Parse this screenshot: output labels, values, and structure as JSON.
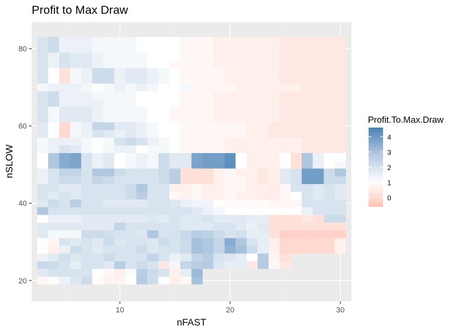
{
  "chart_data": {
    "type": "heatmap",
    "title": "Profit to Max Draw",
    "xlabel": "nFAST",
    "ylabel": "nSLOW",
    "xlim": [
      2,
      31
    ],
    "ylim": [
      14.6,
      86.9
    ],
    "x_ticks": [
      10,
      20,
      30
    ],
    "y_ticks": [
      20,
      40,
      60,
      80
    ],
    "grid": true,
    "legend_position": "right",
    "legend": {
      "title": "Profit.To.Max.Draw",
      "ticks": [
        4,
        3,
        2,
        1,
        0
      ],
      "range": [
        -0.6,
        4.6
      ]
    },
    "colors": {
      "low": "#ffc2b4",
      "mid": "#ffffff",
      "high": "#4a82b8",
      "midpoint": 1
    },
    "x_values": [
      3,
      4,
      5,
      6,
      7,
      8,
      9,
      10,
      11,
      12,
      13,
      14,
      15,
      16,
      17,
      18,
      19,
      20,
      21,
      22,
      23,
      24,
      25,
      26,
      27,
      28,
      29,
      30
    ],
    "y_values": [
      20,
      22,
      24,
      26,
      28,
      30,
      32,
      34,
      36,
      38,
      40,
      42,
      44,
      46,
      48,
      50,
      52,
      54,
      56,
      58,
      60,
      62,
      64,
      66,
      68,
      70,
      72,
      74,
      76,
      78,
      80,
      82
    ],
    "z_rows": [
      [
        0.8,
        0.9,
        1.4,
        1.7,
        2.0,
        0.9,
        0.7,
        0.7,
        1.0,
        2.5,
        2.0,
        1.0,
        0.6,
        0.8,
        2.8,
        null,
        null,
        null,
        null,
        null,
        null,
        null,
        null,
        null,
        null,
        null,
        null,
        null
      ],
      [
        1.6,
        1.8,
        1.8,
        1.8,
        1.8,
        1.0,
        0.8,
        0.6,
        1.1,
        2.4,
        2.0,
        1.8,
        0.6,
        1.5,
        3.0,
        null,
        null,
        null,
        null,
        null,
        null,
        null,
        null,
        null,
        null,
        null,
        null,
        null
      ],
      [
        2.1,
        2.0,
        1.8,
        1.5,
        1.8,
        1.8,
        1.6,
        2.4,
        1.8,
        2.0,
        1.8,
        0.4,
        1.2,
        2.2,
        2.4,
        2.5,
        1.7,
        1.5,
        1.5,
        0.4,
        2.5,
        0.8,
        0.4,
        null,
        null,
        null,
        null,
        null
      ],
      [
        1.4,
        1.6,
        1.9,
        1.7,
        1.8,
        1.8,
        2.0,
        1.8,
        1.8,
        1.8,
        2.2,
        1.8,
        1.4,
        1.6,
        2.2,
        2.4,
        1.8,
        1.7,
        1.5,
        1.0,
        2.5,
        0.7,
        0.2,
        null,
        null,
        null,
        null,
        null
      ],
      [
        1.0,
        0.6,
        1.4,
        2.0,
        1.8,
        1.6,
        1.8,
        1.8,
        1.8,
        2.0,
        1.7,
        1.8,
        1.8,
        2.0,
        2.8,
        2.6,
        2.2,
        3.2,
        2.8,
        2.0,
        1.5,
        0.6,
        0.0,
        0.0,
        0.0,
        0.0,
        0.0,
        0.6
      ],
      [
        1.0,
        0.7,
        1.8,
        1.6,
        1.8,
        1.6,
        2.0,
        1.7,
        1.8,
        1.8,
        1.7,
        2.0,
        1.8,
        2.0,
        2.8,
        2.6,
        2.2,
        3.4,
        2.6,
        1.8,
        1.5,
        0.6,
        0.0,
        0.0,
        0.0,
        0.0,
        0.0,
        0.6
      ],
      [
        1.6,
        1.2,
        1.2,
        1.2,
        2.0,
        2.0,
        1.9,
        1.8,
        1.8,
        1.7,
        2.6,
        1.8,
        1.8,
        2.1,
        2.4,
        2.3,
        2.0,
        1.8,
        1.9,
        1.5,
        1.5,
        0.2,
        -0.2,
        -0.2,
        -0.2,
        -0.2,
        -0.2,
        -0.2
      ],
      [
        1.6,
        1.6,
        1.6,
        1.6,
        1.6,
        1.6,
        1.6,
        2.2,
        1.8,
        1.8,
        1.8,
        1.8,
        1.8,
        1.6,
        1.6,
        1.6,
        1.8,
        1.8,
        1.6,
        1.4,
        1.6,
        0.2,
        0.2,
        0.2,
        0.2,
        0.2,
        0.2,
        0.2
      ],
      [
        1.0,
        1.4,
        1.4,
        1.4,
        1.6,
        1.6,
        1.6,
        1.6,
        1.6,
        1.6,
        1.7,
        1.6,
        1.8,
        1.6,
        1.7,
        1.8,
        1.6,
        1.6,
        1.6,
        1.5,
        1.5,
        0.2,
        0.2,
        0.2,
        0.4,
        0.2,
        2.0,
        2.0
      ],
      [
        2.6,
        1.8,
        1.8,
        1.8,
        1.8,
        1.8,
        1.8,
        1.8,
        1.8,
        1.8,
        1.8,
        1.8,
        1.8,
        1.8,
        1.6,
        1.4,
        1.2,
        1.0,
        1.0,
        1.0,
        1.0,
        1.0,
        1.0,
        1.0,
        1.4,
        1.8,
        1.8,
        1.8
      ],
      [
        1.6,
        2.0,
        1.8,
        2.4,
        1.8,
        1.8,
        1.6,
        1.6,
        1.6,
        1.6,
        1.8,
        1.8,
        1.7,
        1.4,
        1.3,
        1.3,
        1.0,
        0.9,
        0.9,
        0.9,
        0.9,
        0.8,
        0.8,
        0.8,
        1.8,
        1.8,
        1.8,
        1.8
      ],
      [
        1.8,
        1.6,
        1.8,
        1.6,
        1.8,
        1.8,
        1.8,
        1.8,
        2.0,
        2.4,
        1.8,
        1.8,
        0.8,
        0.6,
        0.8,
        0.6,
        0.6,
        0.8,
        0.6,
        0.6,
        0.5,
        0.5,
        0.8,
        1.0,
        1.8,
        1.6,
        1.8,
        1.6
      ],
      [
        1.8,
        1.8,
        1.6,
        1.6,
        1.8,
        1.8,
        1.8,
        1.8,
        2.0,
        2.6,
        1.8,
        1.8,
        0.6,
        0.6,
        0.8,
        0.6,
        0.6,
        0.8,
        0.8,
        0.6,
        0.6,
        0.5,
        0.8,
        1.8,
        1.8,
        1.6,
        1.8,
        1.6
      ],
      [
        1.4,
        1.8,
        2.0,
        2.0,
        1.8,
        2.2,
        2.0,
        1.8,
        1.8,
        1.8,
        1.8,
        2.0,
        2.4,
        0.2,
        0.2,
        0.2,
        0.6,
        0.8,
        0.8,
        0.6,
        0.4,
        0.6,
        1.6,
        1.8,
        3.8,
        3.8,
        2.0,
        2.0
      ],
      [
        1.4,
        1.8,
        2.2,
        2.2,
        1.8,
        2.6,
        2.6,
        2.0,
        1.8,
        1.8,
        1.8,
        2.0,
        2.4,
        0.2,
        0.2,
        0.2,
        0.6,
        0.8,
        0.6,
        0.6,
        0.4,
        0.6,
        1.6,
        1.8,
        3.8,
        3.8,
        2.0,
        2.6
      ],
      [
        1.0,
        2.6,
        3.4,
        3.6,
        1.8,
        1.4,
        1.6,
        1.0,
        1.2,
        1.4,
        1.2,
        2.0,
        1.6,
        1.6,
        3.6,
        3.8,
        3.8,
        4.2,
        1.0,
        0.6,
        0.6,
        0.6,
        1.0,
        0.2,
        2.6,
        1.4,
        1.0,
        1.2
      ],
      [
        1.0,
        2.6,
        3.4,
        3.6,
        1.8,
        1.4,
        1.6,
        1.0,
        1.2,
        1.4,
        1.2,
        2.0,
        1.6,
        1.6,
        3.6,
        3.8,
        3.8,
        4.2,
        1.0,
        0.6,
        0.6,
        0.6,
        1.0,
        0.2,
        2.6,
        1.4,
        1.0,
        1.0
      ],
      [
        1.2,
        1.4,
        1.8,
        1.6,
        1.2,
        1.0,
        1.2,
        1.4,
        1.4,
        1.0,
        1.2,
        1.2,
        1.0,
        0.8,
        0.8,
        0.8,
        0.8,
        0.6,
        0.6,
        0.6,
        0.6,
        0.6,
        0.6,
        0.6,
        0.4,
        0.4,
        0.4,
        0.4
      ],
      [
        1.2,
        1.4,
        1.4,
        1.4,
        1.2,
        1.0,
        1.2,
        1.8,
        2.0,
        1.8,
        1.4,
        1.2,
        1.0,
        0.8,
        0.8,
        0.8,
        0.8,
        0.6,
        0.6,
        0.6,
        0.6,
        0.6,
        0.6,
        0.6,
        0.4,
        0.4,
        0.4,
        0.4
      ],
      [
        1.6,
        1.0,
        0.0,
        1.2,
        1.4,
        1.8,
        1.6,
        1.4,
        1.6,
        1.4,
        1.2,
        1.0,
        1.0,
        0.8,
        0.8,
        0.8,
        0.8,
        0.8,
        0.8,
        0.6,
        0.6,
        0.4,
        0.4,
        0.4,
        0.4,
        0.4,
        0.4,
        0.4
      ],
      [
        1.6,
        1.0,
        0.0,
        1.2,
        1.4,
        2.2,
        2.2,
        1.6,
        1.6,
        1.4,
        1.2,
        1.0,
        1.0,
        0.8,
        0.8,
        0.8,
        0.8,
        0.8,
        0.8,
        0.6,
        0.6,
        0.4,
        0.4,
        0.4,
        0.4,
        0.4,
        0.4,
        0.4
      ],
      [
        1.8,
        1.2,
        1.6,
        1.6,
        1.6,
        1.4,
        1.2,
        1.2,
        1.2,
        1.2,
        1.0,
        1.0,
        0.8,
        0.8,
        0.8,
        0.8,
        0.6,
        0.6,
        0.6,
        0.6,
        0.6,
        0.6,
        0.4,
        0.4,
        0.4,
        0.4,
        0.4,
        0.4
      ],
      [
        1.8,
        1.2,
        1.6,
        1.6,
        1.6,
        1.4,
        1.2,
        1.2,
        1.2,
        1.2,
        1.0,
        1.0,
        0.8,
        0.8,
        0.8,
        0.8,
        0.6,
        0.6,
        0.6,
        0.6,
        0.6,
        0.6,
        0.4,
        0.4,
        0.4,
        0.4,
        0.4,
        0.4
      ],
      [
        1.8,
        2.0,
        1.4,
        1.4,
        1.4,
        1.4,
        1.2,
        1.2,
        1.2,
        1.0,
        1.0,
        1.0,
        1.0,
        0.8,
        0.8,
        0.8,
        0.6,
        0.6,
        0.6,
        0.6,
        0.6,
        0.6,
        0.4,
        0.4,
        0.4,
        0.4,
        0.4,
        0.4
      ],
      [
        1.8,
        2.0,
        1.4,
        1.4,
        1.4,
        1.2,
        1.2,
        1.2,
        1.2,
        1.0,
        1.0,
        1.0,
        1.0,
        0.8,
        0.8,
        0.8,
        0.6,
        0.6,
        0.6,
        0.6,
        0.6,
        0.6,
        0.4,
        0.4,
        0.4,
        0.4,
        0.4,
        0.4
      ]
    ],
    "z_rows_y": [
      20,
      22,
      24,
      26,
      28,
      30,
      32,
      34,
      36,
      38,
      40,
      42,
      44,
      46,
      48,
      50,
      52,
      54,
      56,
      58,
      60,
      62,
      64,
      66,
      68
    ]
  }
}
